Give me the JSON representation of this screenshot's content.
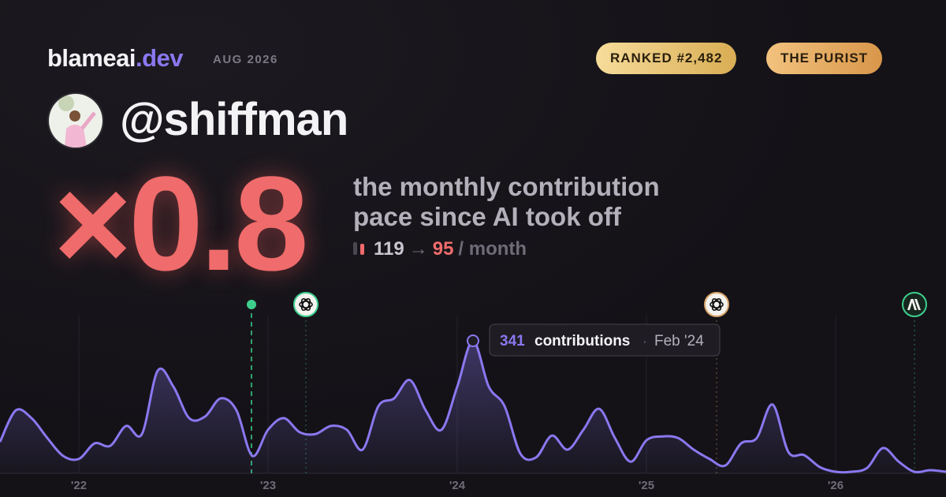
{
  "header": {
    "brand": "blameai",
    "brand_tld": ".dev",
    "period": "AUG 2026",
    "badges": [
      "RANKED #2,482",
      "THE PURIST"
    ],
    "handle": "@shiffman"
  },
  "stat": {
    "multiplier": "×0.8",
    "caption_lines": [
      "the monthly contribution",
      "pace since AI took off"
    ],
    "before": "119",
    "arrow": "→",
    "after": "95",
    "unit": "/ month"
  },
  "tooltip": {
    "unit": "contributions",
    "separator": "·",
    "date": "Feb '24"
  },
  "chart_data": {
    "type": "area",
    "color": "#8a78f0",
    "categories": [
      null,
      null,
      null,
      null,
      null,
      "'22",
      null,
      null,
      null,
      null,
      null,
      null,
      null,
      null,
      null,
      null,
      null,
      "'23",
      null,
      null,
      null,
      null,
      null,
      null,
      null,
      null,
      null,
      null,
      null,
      "'24",
      null,
      null,
      null,
      null,
      null,
      null,
      null,
      null,
      null,
      null,
      null,
      "'25",
      null,
      null,
      null,
      null,
      null,
      null,
      null,
      null,
      null,
      null,
      null,
      "'26",
      null,
      null,
      null,
      null,
      null,
      null,
      null
    ],
    "values": [
      81,
      162,
      142,
      91,
      45,
      37,
      77,
      71,
      122,
      101,
      264,
      223,
      142,
      146,
      193,
      162,
      45,
      112,
      142,
      106,
      101,
      122,
      112,
      61,
      173,
      193,
      240,
      162,
      112,
      223,
      341,
      223,
      173,
      51,
      41,
      97,
      61,
      112,
      166,
      91,
      30,
      85,
      95,
      91,
      61,
      37,
      20,
      77,
      91,
      177,
      55,
      47,
      16,
      4,
      4,
      14,
      65,
      30,
      4,
      8,
      4
    ],
    "ylim": [
      0,
      408
    ]
  }
}
